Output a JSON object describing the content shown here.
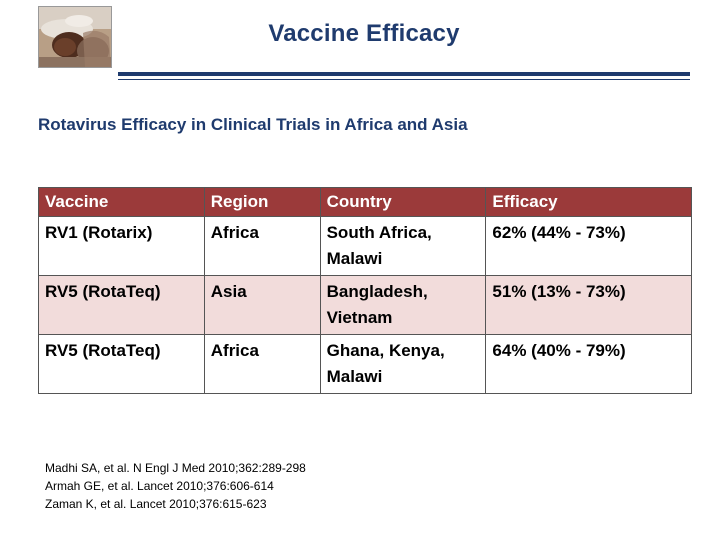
{
  "slide": {
    "title": "Vaccine Efficacy",
    "subtitle": "Rotavirus Efficacy in Clinical Trials in Africa and Asia"
  },
  "table": {
    "headers": [
      "Vaccine",
      "Region",
      "Country",
      "Efficacy"
    ],
    "rows": [
      [
        "RV1 (Rotarix)",
        "Africa",
        "South Africa, Malawi",
        "62% (44% - 73%)"
      ],
      [
        "RV5 (RotaTeq)",
        "Asia",
        "Bangladesh, Vietnam",
        "51% (13% - 73%)"
      ],
      [
        "RV5 (RotaTeq)",
        "Africa",
        "Ghana, Kenya, Malawi",
        "64% (40% - 79%)"
      ]
    ]
  },
  "references": [
    "Madhi SA, et al. N Engl J Med 2010;362:289-298",
    "Armah GE, et al. Lancet 2010;376:606-614",
    "Zaman K, et al. Lancet 2010;376:615-623"
  ],
  "colors": {
    "title": "#1f3b6e",
    "header_bg": "#9b3a3a",
    "alt_row_bg": "#f2dcdb"
  },
  "icons": {
    "photo": "child-photo"
  }
}
